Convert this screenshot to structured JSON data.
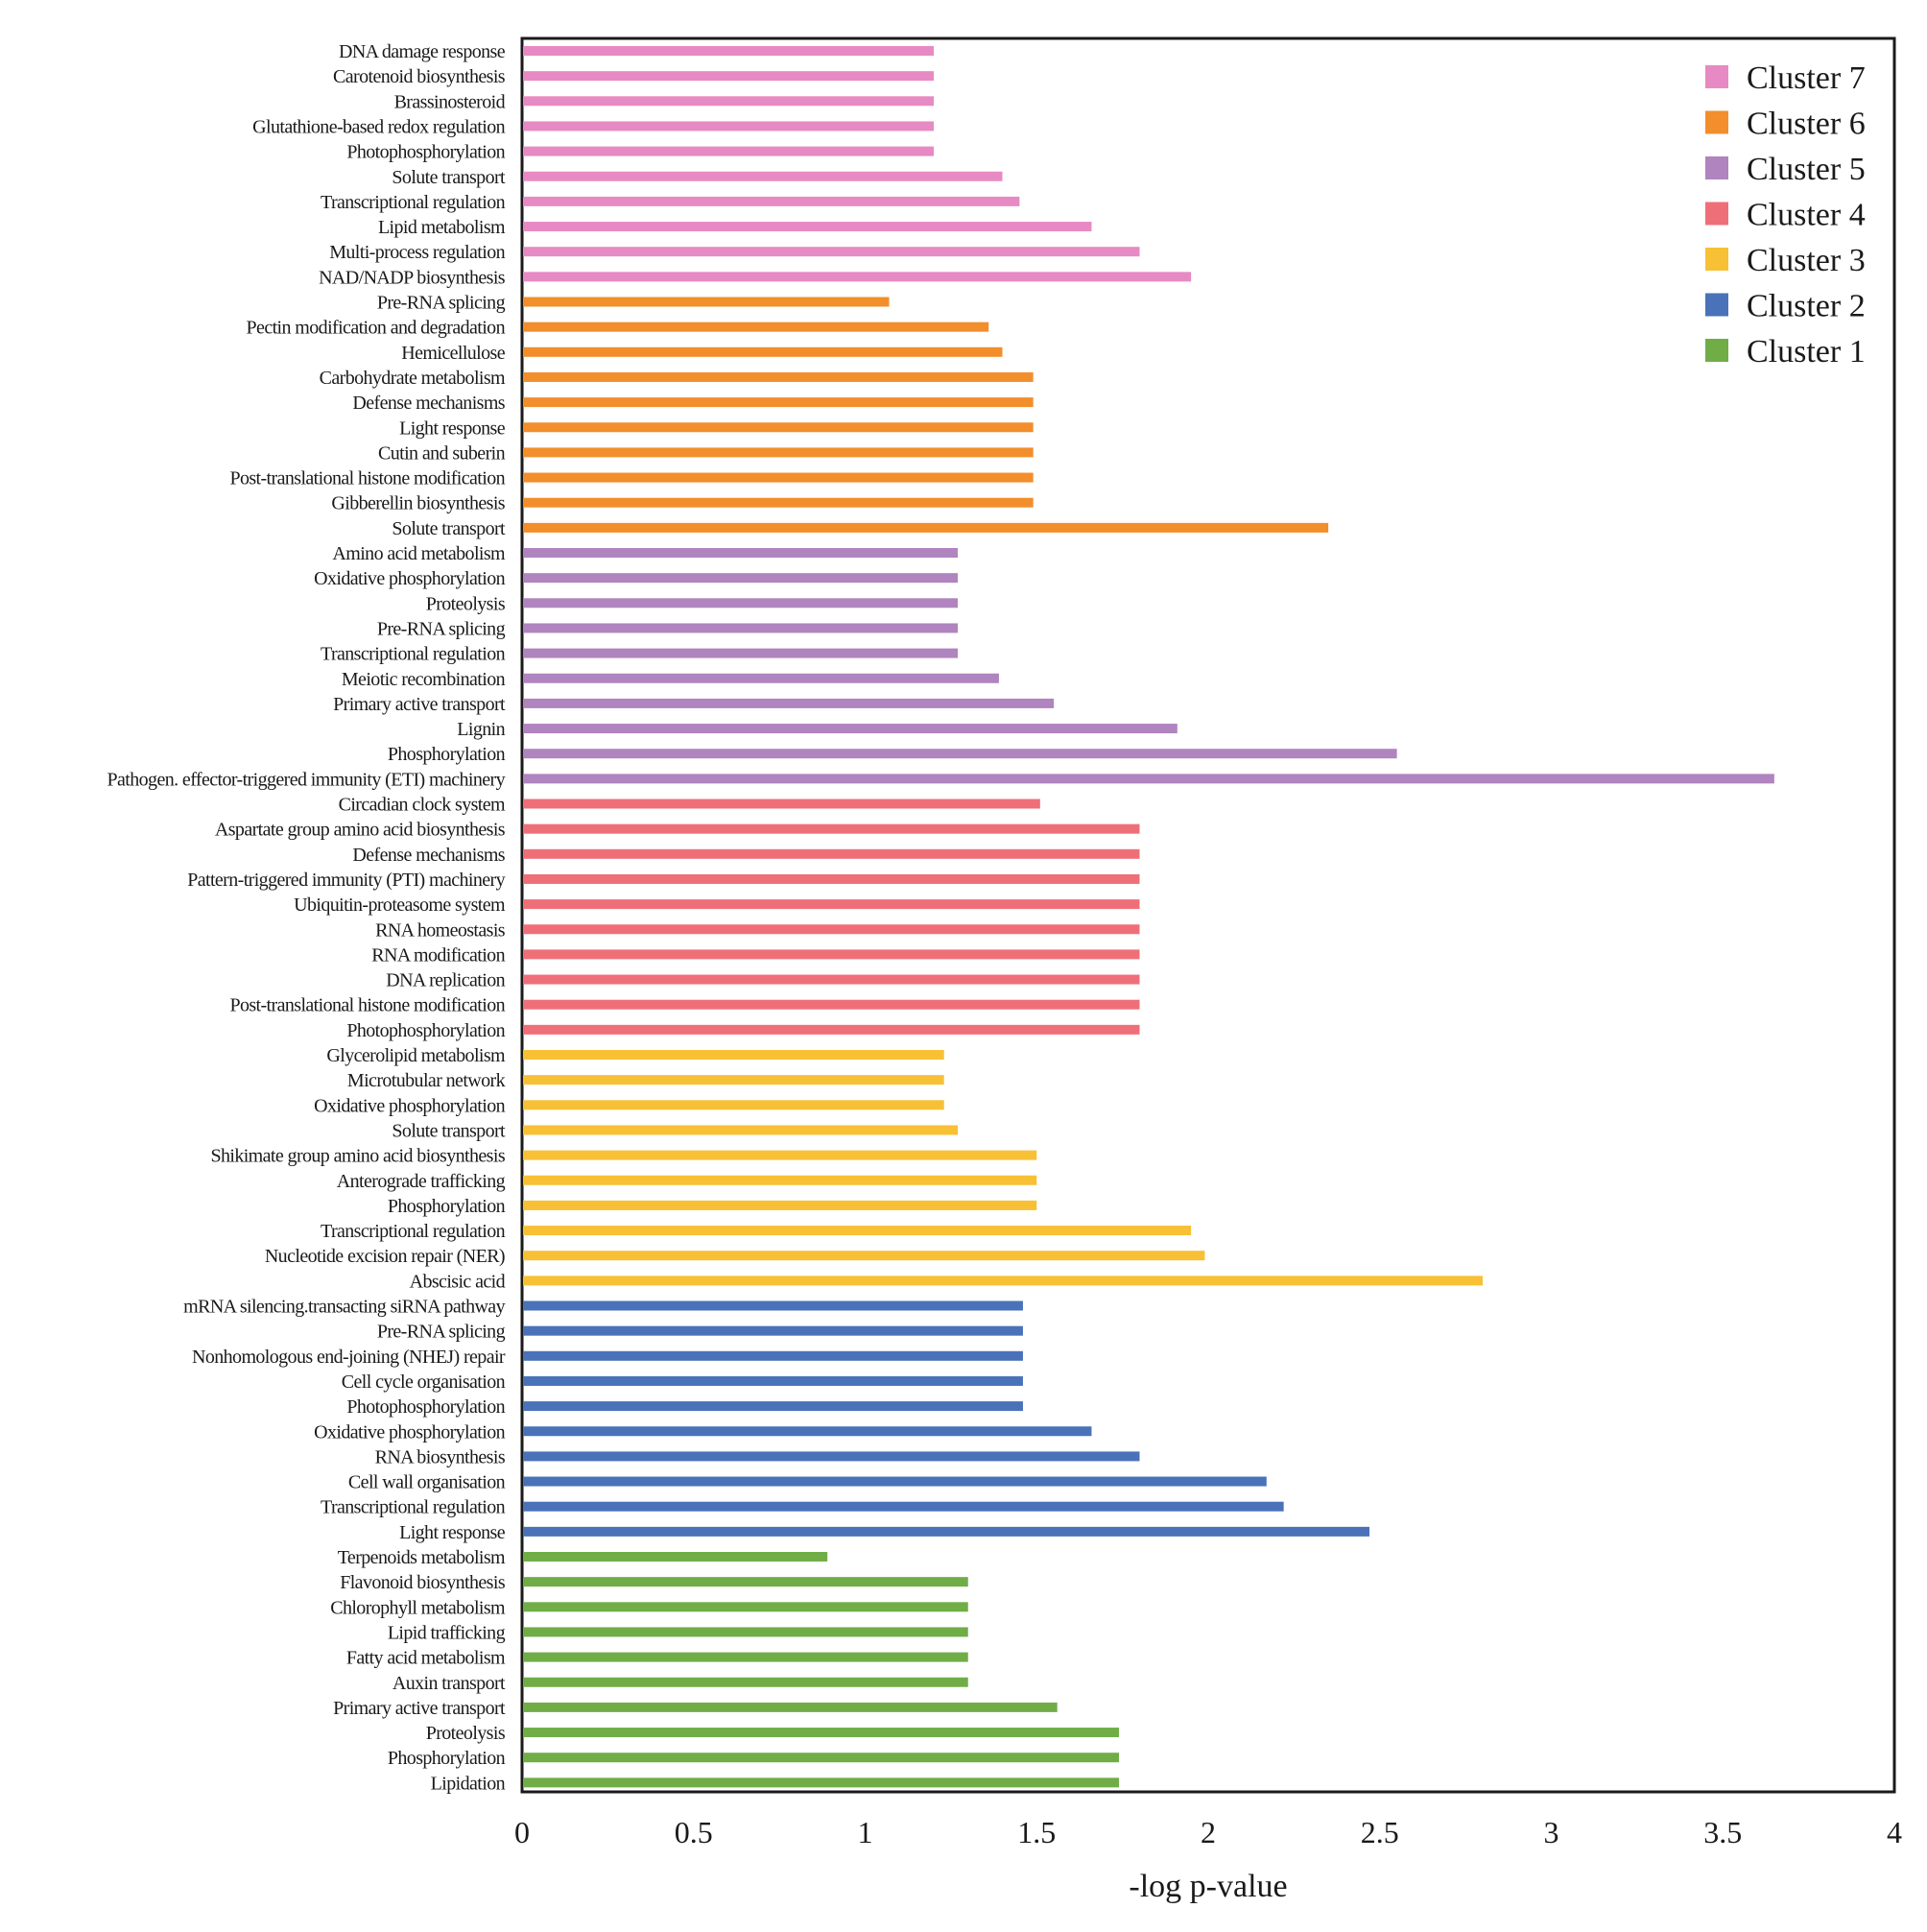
{
  "chart_data": {
    "type": "bar",
    "orientation": "horizontal",
    "xlabel": "-log p-value",
    "ylabel": "",
    "xlim": [
      0,
      4
    ],
    "xticks": [
      "0",
      "0.5",
      "1",
      "1.5",
      "2",
      "2.5",
      "3",
      "3.5",
      "4"
    ],
    "grid": false,
    "legend_position": "top-right",
    "series": [
      {
        "name": "Cluster 7",
        "color": "#e78ac3",
        "categories": [
          "DNA damage response",
          "Carotenoid biosynthesis",
          "Brassinosteroid",
          "Glutathione-based redox regulation",
          "Photophosphorylation",
          "Solute transport",
          "Transcriptional regulation",
          "Lipid metabolism",
          "Multi-process regulation",
          "NAD/NADP biosynthesis"
        ],
        "values": [
          1.2,
          1.2,
          1.2,
          1.2,
          1.2,
          1.4,
          1.45,
          1.66,
          1.8,
          1.95
        ]
      },
      {
        "name": "Cluster 6",
        "color": "#f28e2b",
        "categories": [
          "Pre-RNA splicing",
          "Pectin modification and degradation",
          "Hemicellulose",
          "Carbohydrate metabolism",
          "Defense mechanisms",
          "Light response",
          "Cutin and suberin",
          "Post-translational histone modification",
          "Gibberellin biosynthesis",
          "Solute transport"
        ],
        "values": [
          1.07,
          1.36,
          1.4,
          1.49,
          1.49,
          1.49,
          1.49,
          1.49,
          1.49,
          2.35
        ]
      },
      {
        "name": "Cluster 5",
        "color": "#b084be",
        "categories": [
          "Amino acid metabolism",
          "Oxidative phosphorylation",
          "Proteolysis",
          "Pre-RNA splicing",
          "Transcriptional regulation",
          "Meiotic recombination",
          "Primary active transport",
          "Lignin",
          "Phosphorylation",
          "Pathogen. effector-triggered immunity (ETI) machinery"
        ],
        "values": [
          1.27,
          1.27,
          1.27,
          1.27,
          1.27,
          1.39,
          1.55,
          1.91,
          2.55,
          3.65
        ]
      },
      {
        "name": "Cluster 4",
        "color": "#ef6f79",
        "categories": [
          "Circadian clock system",
          "Aspartate group amino acid biosynthesis",
          "Defense mechanisms",
          "Pattern-triggered immunity (PTI) machinery",
          "Ubiquitin-proteasome system",
          "RNA homeostasis",
          "RNA modification",
          "DNA replication",
          "Post-translational histone modification",
          "Photophosphorylation"
        ],
        "values": [
          1.51,
          1.8,
          1.8,
          1.8,
          1.8,
          1.8,
          1.8,
          1.8,
          1.8,
          1.8
        ]
      },
      {
        "name": "Cluster 3",
        "color": "#f7c035",
        "categories": [
          "Glycerolipid metabolism",
          "Microtubular network",
          "Oxidative phosphorylation",
          "Solute transport",
          "Shikimate group amino acid biosynthesis",
          "Anterograde trafficking",
          "Phosphorylation",
          "Transcriptional regulation",
          "Nucleotide excision repair (NER)",
          "Abscisic acid"
        ],
        "values": [
          1.23,
          1.23,
          1.23,
          1.27,
          1.5,
          1.5,
          1.5,
          1.95,
          1.99,
          2.8
        ]
      },
      {
        "name": "Cluster 2",
        "color": "#4a72b8",
        "categories": [
          "mRNA silencing.transacting siRNA pathway",
          "Pre-RNA splicing",
          "Nonhomologous end-joining (NHEJ) repair",
          "Cell cycle organisation",
          "Photophosphorylation",
          "Oxidative phosphorylation",
          "RNA biosynthesis",
          "Cell wall organisation",
          "Transcriptional regulation",
          "Light response"
        ],
        "values": [
          1.46,
          1.46,
          1.46,
          1.46,
          1.46,
          1.66,
          1.8,
          2.17,
          2.22,
          2.47
        ]
      },
      {
        "name": "Cluster 1",
        "color": "#70ad47",
        "categories": [
          "Terpenoids metabolism",
          "Flavonoid biosynthesis",
          "Chlorophyll metabolism",
          "Lipid trafficking",
          "Fatty acid metabolism",
          "Auxin transport",
          "Primary active transport",
          "Proteolysis",
          "Phosphorylation",
          "Lipidation"
        ],
        "values": [
          0.89,
          1.3,
          1.3,
          1.3,
          1.3,
          1.3,
          1.56,
          1.74,
          1.74,
          1.74
        ]
      }
    ]
  }
}
